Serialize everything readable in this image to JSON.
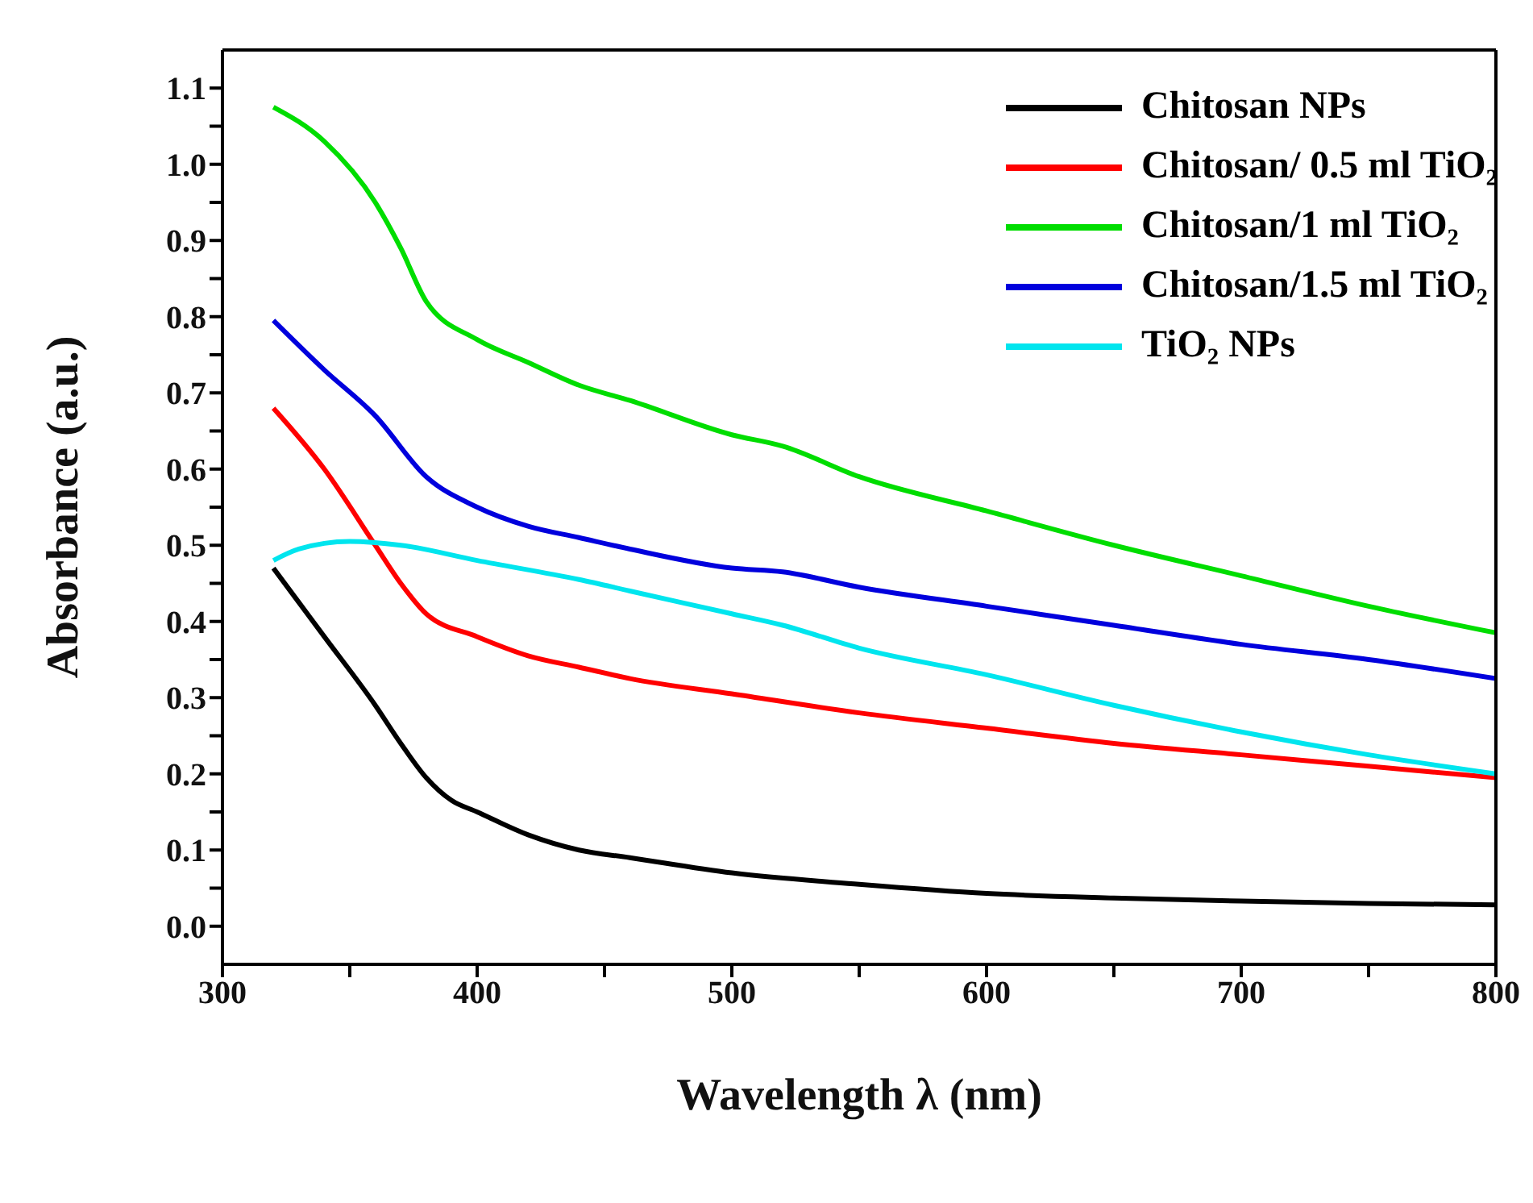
{
  "chart_data": {
    "type": "line",
    "xlabel": "Wavelength λ (nm)",
    "ylabel": "Absorbance (a.u.)",
    "xlim": [
      300,
      800
    ],
    "ylim": [
      -0.05,
      1.15
    ],
    "xticks": [
      300,
      {
        "value": 350,
        "label": null
      },
      400,
      {
        "value": 450,
        "label": null
      },
      500,
      {
        "value": 550,
        "label": null
      },
      600,
      {
        "value": 650,
        "label": null
      },
      700,
      {
        "value": 750,
        "label": null
      },
      800
    ],
    "yticks": [
      {
        "value": 0,
        "label": "0.0"
      },
      {
        "value": 0.05,
        "label": null
      },
      0.1,
      {
        "value": 0.15,
        "label": null
      },
      0.2,
      {
        "value": 0.25,
        "label": null
      },
      0.3,
      {
        "value": 0.35,
        "label": null
      },
      0.4,
      {
        "value": 0.45,
        "label": null
      },
      0.5,
      {
        "value": 0.55,
        "label": null
      },
      0.6,
      {
        "value": 0.65,
        "label": null
      },
      0.7,
      {
        "value": 0.75,
        "label": null
      },
      0.8,
      {
        "value": 0.85,
        "label": null
      },
      0.9,
      {
        "value": 0.95,
        "label": null
      },
      {
        "value": 1,
        "label": "1.0"
      },
      {
        "value": 1.05,
        "label": null
      },
      1.1
    ],
    "legend": "top right",
    "marker": "none",
    "line_style": "solid",
    "series": [
      {
        "name": "Chitosan NPs",
        "color": "#000000",
        "x": [
          320,
          340,
          360,
          370,
          380,
          390,
          400,
          420,
          440,
          460,
          500,
          550,
          600,
          650,
          700,
          750,
          800
        ],
        "values": [
          0.47,
          0.38,
          0.29,
          0.24,
          0.195,
          0.165,
          0.15,
          0.12,
          0.1,
          0.09,
          0.07,
          0.055,
          0.043,
          0.037,
          0.033,
          0.03,
          0.028
        ]
      },
      {
        "name": "Chitosan/ 0.5 ml TiO₂",
        "color": "#ff0000",
        "x": [
          320,
          340,
          360,
          370,
          380,
          400,
          420,
          440,
          460,
          500,
          550,
          600,
          650,
          700,
          750,
          800
        ],
        "values": [
          0.68,
          0.6,
          0.5,
          0.45,
          0.41,
          0.38,
          0.355,
          0.34,
          0.325,
          0.305,
          0.28,
          0.26,
          0.24,
          0.225,
          0.21,
          0.195
        ]
      },
      {
        "name": "Chitosan/1 ml TiO₂",
        "color": "#00dd00",
        "x": [
          320,
          340,
          360,
          370,
          380,
          400,
          420,
          440,
          460,
          500,
          520,
          550,
          600,
          650,
          700,
          750,
          800
        ],
        "values": [
          1.075,
          1.03,
          0.95,
          0.89,
          0.82,
          0.77,
          0.74,
          0.71,
          0.69,
          0.645,
          0.63,
          0.59,
          0.545,
          0.5,
          0.46,
          0.42,
          0.385
        ]
      },
      {
        "name": "Chitosan/1.5 ml TiO₂",
        "color": "#0000dd",
        "x": [
          320,
          340,
          360,
          380,
          400,
          420,
          440,
          460,
          500,
          520,
          550,
          600,
          650,
          700,
          750,
          800
        ],
        "values": [
          0.795,
          0.73,
          0.67,
          0.59,
          0.55,
          0.525,
          0.51,
          0.495,
          0.47,
          0.465,
          0.445,
          0.42,
          0.395,
          0.37,
          0.35,
          0.325
        ]
      },
      {
        "name": "TiO₂ NPs",
        "color": "#00e5ee",
        "x": [
          320,
          330,
          350,
          370,
          400,
          440,
          460,
          500,
          520,
          550,
          600,
          650,
          700,
          750,
          800
        ],
        "values": [
          0.48,
          0.495,
          0.505,
          0.5,
          0.48,
          0.455,
          0.44,
          0.41,
          0.395,
          0.365,
          0.33,
          0.29,
          0.255,
          0.225,
          0.2
        ]
      }
    ]
  }
}
